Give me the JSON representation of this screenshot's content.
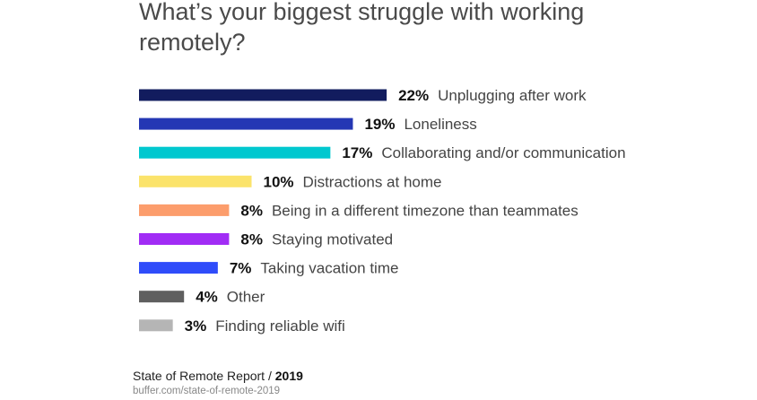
{
  "chart_data": {
    "type": "bar",
    "orientation": "horizontal",
    "title": "What’s your biggest struggle with working remotely?",
    "categories": [
      "Unplugging after work",
      "Loneliness",
      "Collaborating and/or communication",
      "Distractions at home",
      "Being in a different timezone than teammates",
      "Staying motivated",
      "Taking vacation time",
      "Other",
      "Finding reliable wifi"
    ],
    "values": [
      22,
      19,
      17,
      10,
      8,
      8,
      7,
      4,
      3
    ],
    "value_labels": [
      "22%",
      "19%",
      "17%",
      "10%",
      "8%",
      "8%",
      "7%",
      "4%",
      "3%"
    ],
    "colors": [
      "#121c5e",
      "#2437b4",
      "#00c8cf",
      "#fbe36b",
      "#fc9d6c",
      "#a12cf5",
      "#2f4cfa",
      "#5f5f5f",
      "#b5b5b5"
    ],
    "unit": "%",
    "grid": false,
    "axes_visible": false
  },
  "footer": {
    "source": "State of Remote Report / ",
    "year": "2019",
    "url": "buffer.com/state-of-remote-2019"
  }
}
